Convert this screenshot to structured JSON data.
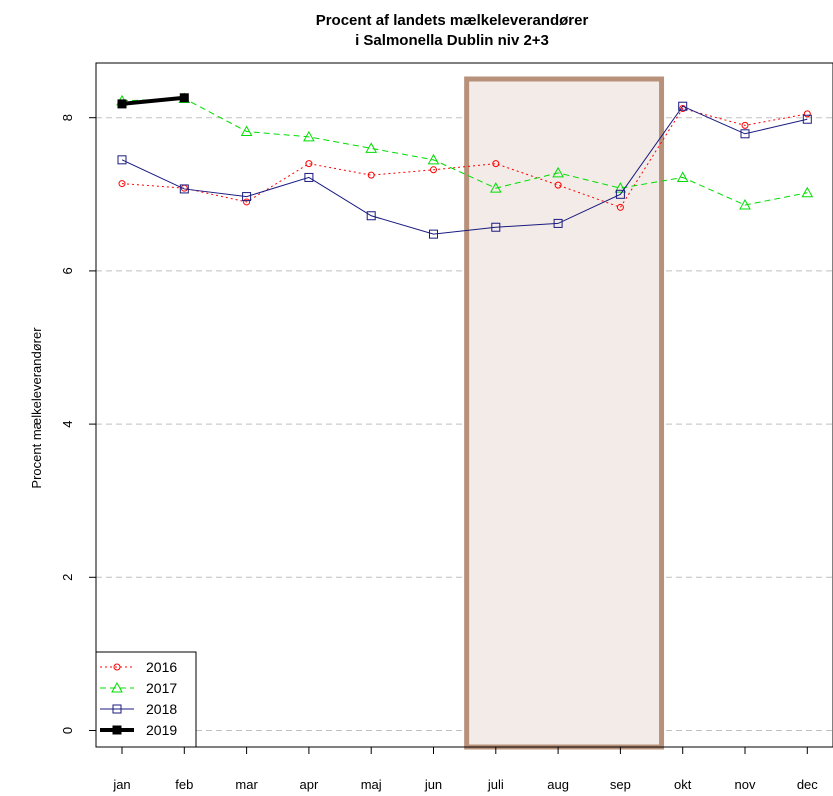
{
  "chart_data": {
    "type": "line",
    "title": "Procent af landets mælkeleverandører",
    "subtitle": "i Salmonella Dublin niv 2+3",
    "xlabel": "",
    "ylabel": "Procent mælkeleverandører",
    "categories": [
      "jan",
      "feb",
      "mar",
      "apr",
      "maj",
      "jun",
      "juli",
      "aug",
      "sep",
      "okt",
      "nov",
      "dec"
    ],
    "yticks": [
      0,
      2,
      4,
      6,
      8
    ],
    "ylim": [
      -0.2,
      8.6
    ],
    "grid": "horizontal dashed",
    "legend_position": "bottom-left",
    "highlight": {
      "from": "juli",
      "to": "sep",
      "color": "#b8917a",
      "fill": "#f3ebe7"
    },
    "series": [
      {
        "name": "2016",
        "color": "#ff0000",
        "style": "dotted",
        "marker": "circle",
        "values": [
          7.14,
          7.08,
          6.9,
          7.4,
          7.25,
          7.32,
          7.4,
          7.12,
          6.83,
          8.12,
          7.9,
          8.05
        ]
      },
      {
        "name": "2017",
        "color": "#00dd00",
        "style": "dashed",
        "marker": "triangle",
        "values": [
          8.22,
          8.25,
          7.82,
          7.75,
          7.6,
          7.45,
          7.08,
          7.28,
          7.08,
          7.22,
          6.86,
          7.02
        ]
      },
      {
        "name": "2018",
        "color": "#1a1a80",
        "style": "solid",
        "marker": "square",
        "values": [
          7.45,
          7.07,
          6.97,
          7.22,
          6.72,
          6.48,
          6.57,
          6.62,
          7.0,
          8.15,
          7.79,
          7.98
        ]
      },
      {
        "name": "2019",
        "color": "#000000",
        "style": "thick",
        "marker": "filled-square",
        "values": [
          8.18,
          8.26,
          null,
          null,
          null,
          null,
          null,
          null,
          null,
          null,
          null,
          null
        ]
      }
    ]
  }
}
